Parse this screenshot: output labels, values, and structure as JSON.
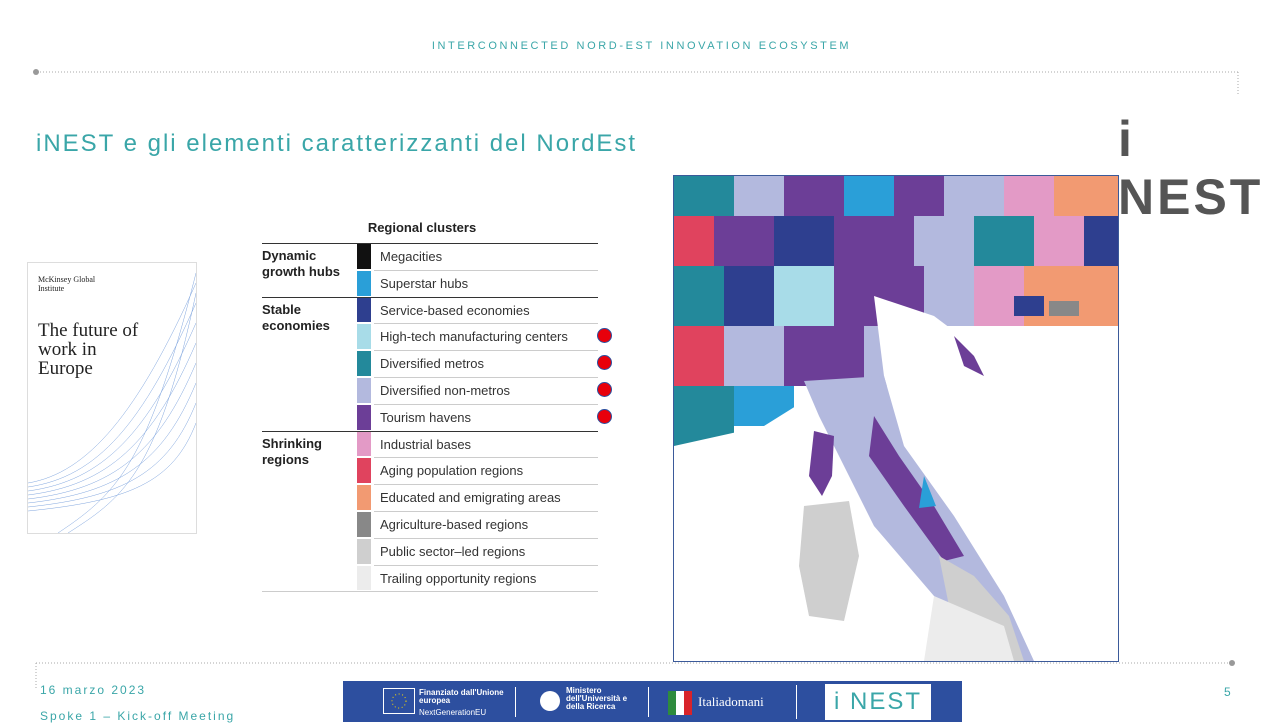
{
  "header": {
    "ecosystem": "INTERCONNECTED NORD-EST INNOVATION ECOSYSTEM",
    "title": "iNEST e gli elementi caratterizzanti del NordEst",
    "logo": "i NEST"
  },
  "cover": {
    "publisher": "McKinsey Global Institute",
    "title": "The future of work in Europe"
  },
  "legend": {
    "title": "Regional clusters",
    "groups": [
      {
        "name": "Dynamic growth hubs",
        "rows": [
          {
            "label": "Megacities",
            "color": "#111111",
            "marked": false
          },
          {
            "label": "Superstar hubs",
            "color": "#2a9fd8",
            "marked": false
          }
        ]
      },
      {
        "name": "Stable economies",
        "rows": [
          {
            "label": "Service-based economies",
            "color": "#2e3f8f",
            "marked": false
          },
          {
            "label": "High-tech manufacturing centers",
            "color": "#a8dce8",
            "marked": true
          },
          {
            "label": "Diversified metros",
            "color": "#23899b",
            "marked": true
          },
          {
            "label": "Diversified non-metros",
            "color": "#b3b9de",
            "marked": true
          },
          {
            "label": "Tourism havens",
            "color": "#6c3e97",
            "marked": true
          }
        ]
      },
      {
        "name": "Shrinking regions",
        "rows": [
          {
            "label": "Industrial bases",
            "color": "#e39ac6",
            "marked": false
          },
          {
            "label": "Aging population regions",
            "color": "#e0435e",
            "marked": false
          },
          {
            "label": "Educated and emigrating areas",
            "color": "#f29a72",
            "marked": false
          },
          {
            "label": "Agriculture-based regions",
            "color": "#888888",
            "marked": false
          },
          {
            "label": "Public sector–led regions",
            "color": "#cfcfcf",
            "marked": false
          },
          {
            "label": "Trailing opportunity regions",
            "color": "#ececec",
            "marked": false
          }
        ]
      }
    ]
  },
  "footer": {
    "date": "16 marzo 2023",
    "event": "Spoke 1 – Kick-off Meeting",
    "page": "5",
    "eu_line1": "Finanziato dall'Unione europea",
    "eu_line2": "NextGenerationEU",
    "ministry": "Ministero dell'Università e della Ricerca",
    "italiadomani": "Italiadomani",
    "logo": "i NEST"
  }
}
